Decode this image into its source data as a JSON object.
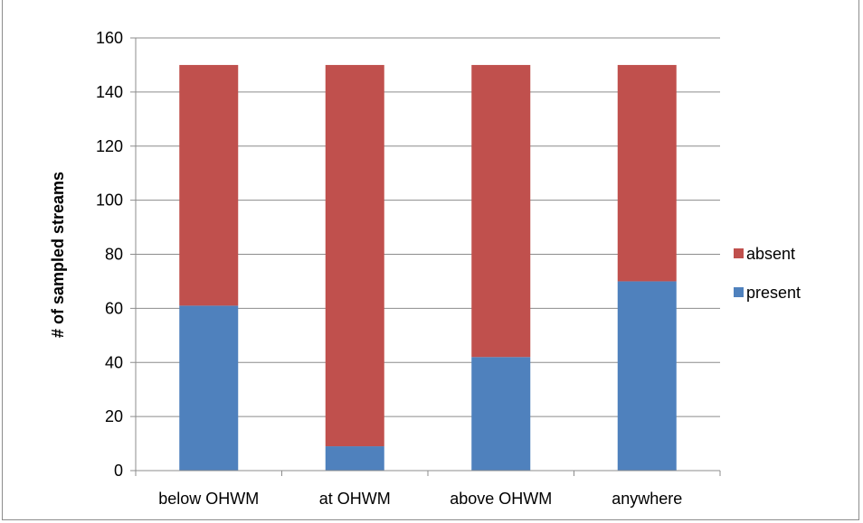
{
  "chart_data": {
    "type": "bar",
    "stacked": true,
    "categories": [
      "below OHWM",
      "at OHWM",
      "above OHWM",
      "anywhere"
    ],
    "series": [
      {
        "name": "present",
        "color": "#4f81bd",
        "values": [
          61,
          9,
          42,
          70
        ]
      },
      {
        "name": "absent",
        "color": "#c0504d",
        "values": [
          89,
          141,
          108,
          80
        ]
      }
    ],
    "ylabel": "# of sampled streams",
    "xlabel": "",
    "ylim": [
      0,
      160
    ],
    "yticks": [
      0,
      20,
      40,
      60,
      80,
      100,
      120,
      140,
      160
    ],
    "grid": true,
    "legend_placement": "right",
    "legend_order": [
      "absent",
      "present"
    ]
  }
}
